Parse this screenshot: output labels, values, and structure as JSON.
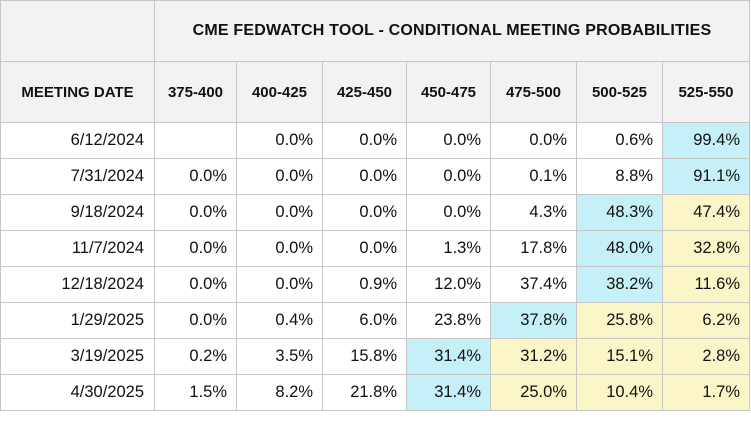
{
  "chart_data": {
    "type": "table",
    "title": "CME FEDWATCH TOOL - CONDITIONAL MEETING PROBABILITIES",
    "row_header_label": "MEETING DATE",
    "columns": [
      "375-400",
      "400-425",
      "425-450",
      "450-475",
      "475-500",
      "500-525",
      "525-550"
    ],
    "rows": [
      {
        "date": "6/12/2024",
        "values": [
          "",
          "0.0%",
          "0.0%",
          "0.0%",
          "0.0%",
          "0.6%",
          "99.4%"
        ],
        "highlight": [
          null,
          null,
          null,
          null,
          null,
          null,
          "primary"
        ]
      },
      {
        "date": "7/31/2024",
        "values": [
          "0.0%",
          "0.0%",
          "0.0%",
          "0.0%",
          "0.1%",
          "8.8%",
          "91.1%"
        ],
        "highlight": [
          null,
          null,
          null,
          null,
          null,
          null,
          "primary"
        ]
      },
      {
        "date": "9/18/2024",
        "values": [
          "0.0%",
          "0.0%",
          "0.0%",
          "0.0%",
          "4.3%",
          "48.3%",
          "47.4%"
        ],
        "highlight": [
          null,
          null,
          null,
          null,
          null,
          "primary",
          "secondary"
        ]
      },
      {
        "date": "11/7/2024",
        "values": [
          "0.0%",
          "0.0%",
          "0.0%",
          "1.3%",
          "17.8%",
          "48.0%",
          "32.8%"
        ],
        "highlight": [
          null,
          null,
          null,
          null,
          null,
          "primary",
          "secondary"
        ]
      },
      {
        "date": "12/18/2024",
        "values": [
          "0.0%",
          "0.0%",
          "0.9%",
          "12.0%",
          "37.4%",
          "38.2%",
          "11.6%"
        ],
        "highlight": [
          null,
          null,
          null,
          null,
          null,
          "primary",
          "secondary"
        ]
      },
      {
        "date": "1/29/2025",
        "values": [
          "0.0%",
          "0.4%",
          "6.0%",
          "23.8%",
          "37.8%",
          "25.8%",
          "6.2%"
        ],
        "highlight": [
          null,
          null,
          null,
          null,
          "primary",
          "secondary",
          "secondary"
        ]
      },
      {
        "date": "3/19/2025",
        "values": [
          "0.2%",
          "3.5%",
          "15.8%",
          "31.4%",
          "31.2%",
          "15.1%",
          "2.8%"
        ],
        "highlight": [
          null,
          null,
          null,
          "primary",
          "secondary",
          "secondary",
          "secondary"
        ]
      },
      {
        "date": "4/30/2025",
        "values": [
          "1.5%",
          "8.2%",
          "21.8%",
          "31.4%",
          "25.0%",
          "10.4%",
          "1.7%"
        ],
        "highlight": [
          null,
          null,
          null,
          "primary",
          "secondary",
          "secondary",
          "secondary"
        ]
      }
    ],
    "colors": {
      "primary": "#c5f0f7",
      "secondary": "#fbf6c8",
      "header_bg": "#f2f2f2",
      "border": "#c6c6c6"
    }
  }
}
